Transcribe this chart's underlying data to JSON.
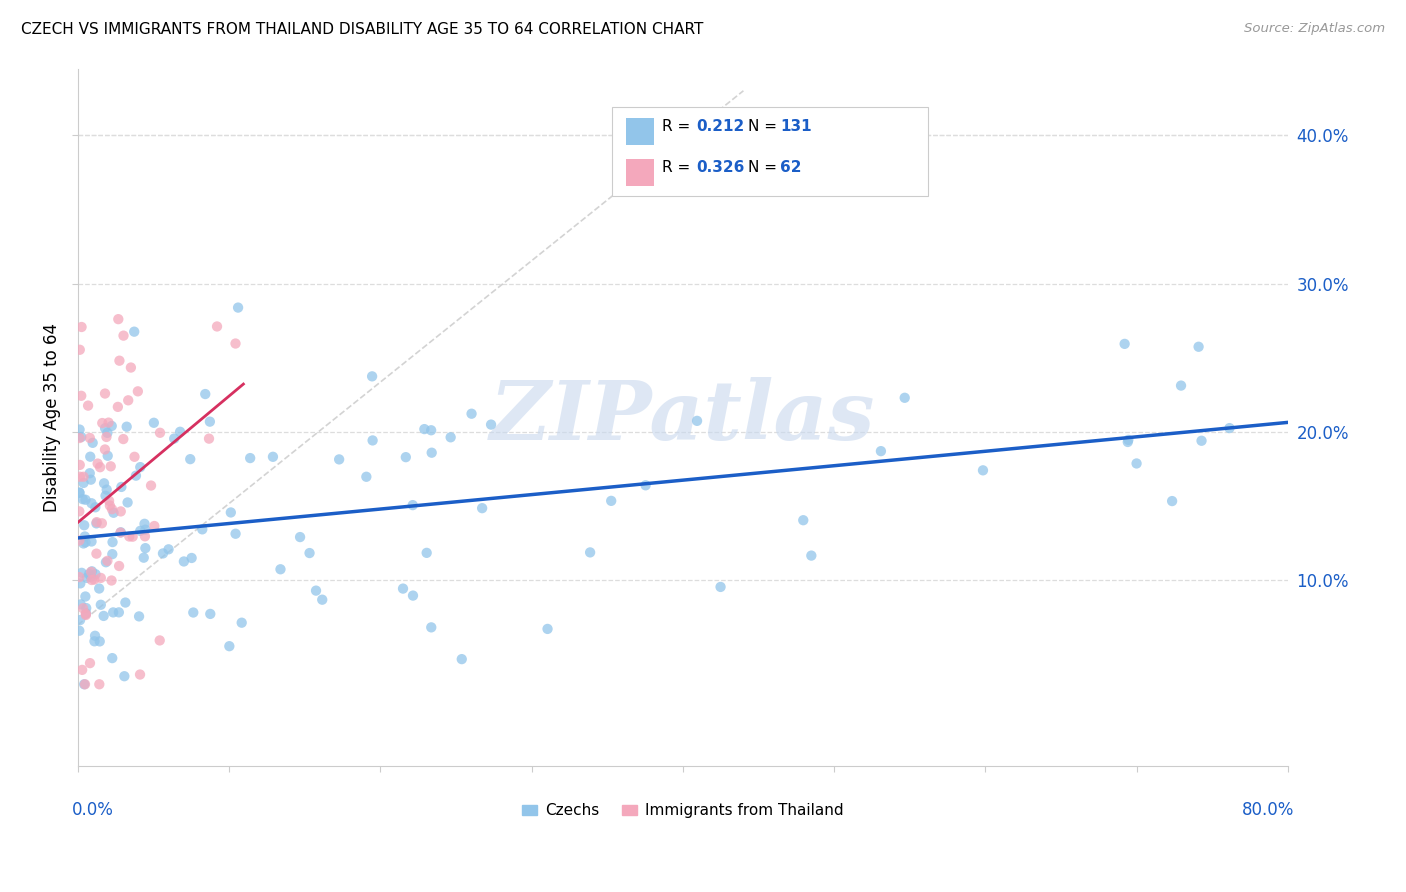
{
  "title": "CZECH VS IMMIGRANTS FROM THAILAND DISABILITY AGE 35 TO 64 CORRELATION CHART",
  "source": "Source: ZipAtlas.com",
  "ylabel": "Disability Age 35 to 64",
  "ytick_values": [
    0.1,
    0.2,
    0.3,
    0.4
  ],
  "xlim": [
    0.0,
    0.8
  ],
  "ylim": [
    -0.025,
    0.445
  ],
  "legend_R1": "0.212",
  "legend_N1": "131",
  "legend_R2": "0.326",
  "legend_N2": "62",
  "color_czech": "#92C5EA",
  "color_thailand": "#F4A8BC",
  "color_trendline_czech": "#1B5EC7",
  "color_trendline_thailand": "#D63060",
  "color_axis_labels": "#1B5EC7",
  "watermark_color": "#C8D8EE",
  "background_color": "#FFFFFF",
  "grid_color": "#DDDDDD",
  "title_fontsize": 11,
  "axis_label_fontsize": 12,
  "marker_size": 55,
  "marker_alpha": 0.75
}
